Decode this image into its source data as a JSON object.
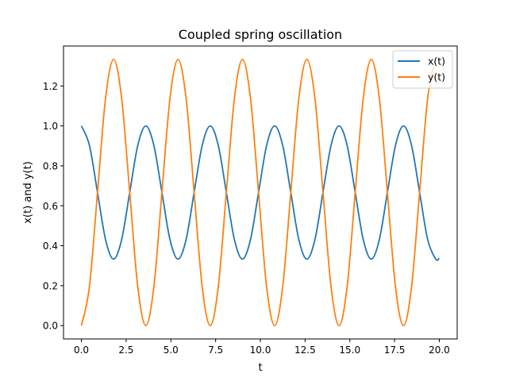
{
  "chart_data": {
    "type": "line",
    "title": "Coupled spring oscillation",
    "xlabel": "t",
    "ylabel": "x(t) and y(t)",
    "xlim": [
      -1.0,
      21.0
    ],
    "ylim": [
      -0.0667,
      1.4
    ],
    "xticks": [
      0.0,
      2.5,
      5.0,
      7.5,
      10.0,
      12.5,
      15.0,
      17.5,
      20.0
    ],
    "xtick_labels": [
      "0.0",
      "2.5",
      "5.0",
      "7.5",
      "10.0",
      "12.5",
      "15.0",
      "17.5",
      "20.0"
    ],
    "yticks": [
      0.0,
      0.2,
      0.4,
      0.6,
      0.8,
      1.0,
      1.2
    ],
    "ytick_labels": [
      "0.0",
      "0.2",
      "0.4",
      "0.6",
      "0.8",
      "1.0",
      "1.2"
    ],
    "grid": false,
    "legend": "top-right",
    "series": [
      {
        "name": "x(t)",
        "color": "#1f77b4",
        "x": [
          0.0,
          0.45,
          0.9,
          1.35,
          1.8,
          2.25,
          2.7,
          3.15,
          3.6,
          4.05,
          4.5,
          4.95,
          5.4,
          5.85,
          6.3,
          6.75,
          7.2,
          7.65,
          8.1,
          8.55,
          9.0,
          9.45,
          9.9,
          10.35,
          10.8,
          11.25,
          11.7,
          12.15,
          12.6,
          13.05,
          13.5,
          13.95,
          14.4,
          14.85,
          15.3,
          15.75,
          16.2,
          16.65,
          17.1,
          17.55,
          18.0,
          18.45,
          18.9,
          19.35,
          19.8,
          20.0
        ],
        "y": [
          1.0,
          0.902,
          0.667,
          0.431,
          0.333,
          0.431,
          0.667,
          0.902,
          1.0,
          0.902,
          0.667,
          0.431,
          0.333,
          0.431,
          0.667,
          0.902,
          1.0,
          0.902,
          0.667,
          0.431,
          0.333,
          0.431,
          0.667,
          0.902,
          1.0,
          0.902,
          0.667,
          0.431,
          0.333,
          0.431,
          0.667,
          0.902,
          1.0,
          0.902,
          0.667,
          0.431,
          0.333,
          0.431,
          0.667,
          0.902,
          1.0,
          0.902,
          0.667,
          0.431,
          0.333,
          0.338
        ]
      },
      {
        "name": "y(t)",
        "color": "#ff7f0e",
        "x": [
          0.0,
          0.45,
          0.9,
          1.35,
          1.8,
          2.25,
          2.7,
          3.15,
          3.6,
          4.05,
          4.5,
          4.95,
          5.4,
          5.85,
          6.3,
          6.75,
          7.2,
          7.65,
          8.1,
          8.55,
          9.0,
          9.45,
          9.9,
          10.35,
          10.8,
          11.25,
          11.7,
          12.15,
          12.6,
          13.05,
          13.5,
          13.95,
          14.4,
          14.85,
          15.3,
          15.75,
          16.2,
          16.65,
          17.1,
          17.55,
          18.0,
          18.45,
          18.9,
          19.35,
          19.8,
          20.0
        ],
        "y": [
          0.0,
          0.195,
          0.667,
          1.138,
          1.333,
          1.138,
          0.667,
          0.195,
          0.0,
          0.195,
          0.667,
          1.138,
          1.333,
          1.138,
          0.667,
          0.195,
          0.0,
          0.195,
          0.667,
          1.138,
          1.333,
          1.138,
          0.667,
          0.195,
          0.0,
          0.195,
          0.667,
          1.138,
          1.333,
          1.138,
          0.667,
          0.195,
          0.0,
          0.195,
          0.667,
          1.138,
          1.333,
          1.138,
          0.667,
          0.195,
          0.0,
          0.195,
          0.667,
          1.138,
          1.333,
          1.32
        ]
      }
    ]
  }
}
